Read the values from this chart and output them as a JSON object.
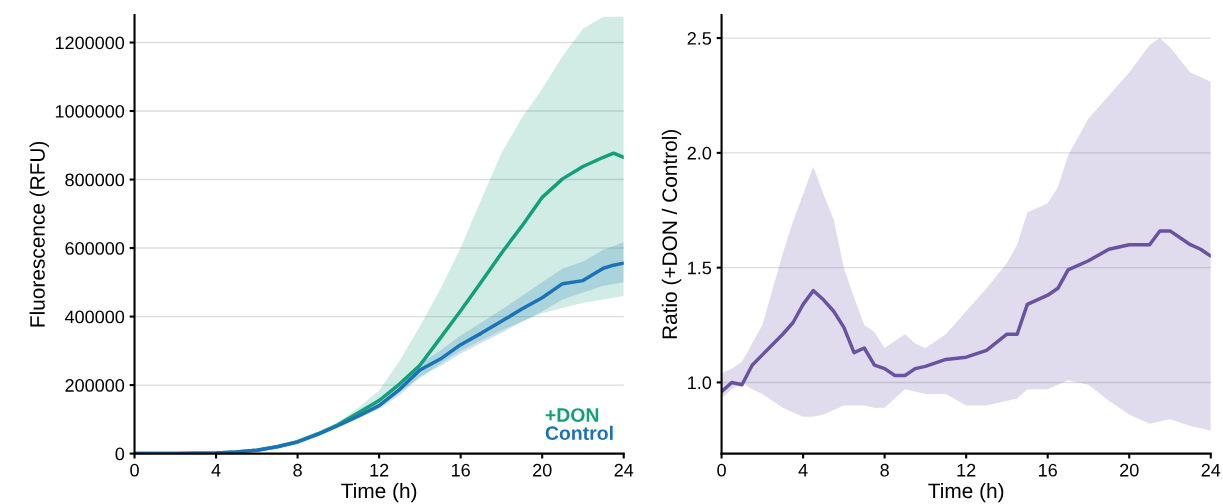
{
  "chart_data": [
    {
      "type": "line",
      "xlabel": "Time (h)",
      "ylabel": "Fluorescence (RFU)",
      "xlim": [
        0,
        24
      ],
      "xticks": [
        0,
        4,
        8,
        12,
        16,
        20,
        24
      ],
      "ylim": [
        0,
        1280000
      ],
      "yticks": [
        0,
        200000,
        400000,
        600000,
        800000,
        1000000,
        1200000
      ],
      "grid": "y",
      "legend": "bottom right",
      "x": [
        0,
        2,
        4,
        5,
        6,
        7,
        8,
        9,
        10,
        11,
        12,
        13,
        14,
        15,
        16,
        17,
        18,
        19,
        20,
        21,
        22,
        23,
        23.5,
        24
      ],
      "series": [
        {
          "name": "+DON",
          "color": "#12a07a",
          "values": [
            0,
            500,
            2000,
            5000,
            10000,
            20000,
            35000,
            58000,
            85000,
            120000,
            155000,
            203000,
            258000,
            337000,
            417000,
            500000,
            585000,
            664000,
            748000,
            802000,
            838000,
            865000,
            877000,
            865000
          ],
          "lower": [
            0,
            500,
            2000,
            5000,
            10000,
            19000,
            33000,
            55000,
            80000,
            110000,
            140000,
            180000,
            220000,
            262000,
            300000,
            330000,
            360000,
            385000,
            410000,
            425000,
            440000,
            450000,
            455000,
            460000
          ],
          "upper": [
            0,
            500,
            2000,
            5000,
            10000,
            21000,
            36000,
            60000,
            92000,
            135000,
            184000,
            270000,
            372000,
            480000,
            600000,
            740000,
            877000,
            980000,
            1065000,
            1160000,
            1240000,
            1275000,
            1275000,
            1275000
          ]
        },
        {
          "name": "Control",
          "color": "#1a72b8",
          "values": [
            0,
            500,
            2000,
            5000,
            10000,
            20000,
            34000,
            56000,
            82000,
            110000,
            140000,
            187000,
            244000,
            276000,
            318000,
            351000,
            386000,
            422000,
            455000,
            496000,
            505000,
            541000,
            550000,
            556000
          ],
          "lower": [
            0,
            500,
            2000,
            5000,
            10000,
            19000,
            32000,
            53000,
            78000,
            104000,
            130000,
            170000,
            225000,
            255000,
            292000,
            322000,
            352000,
            385000,
            415000,
            450000,
            470000,
            490000,
            495000,
            500000
          ],
          "upper": [
            0,
            500,
            2000,
            5000,
            10000,
            21000,
            36000,
            59000,
            86000,
            116000,
            150000,
            205000,
            262000,
            300000,
            345000,
            382000,
            420000,
            460000,
            500000,
            540000,
            560000,
            595000,
            605000,
            618000
          ]
        }
      ]
    },
    {
      "type": "line",
      "xlabel": "Time (h)",
      "ylabel": "Ratio (+DON / Control)",
      "xlim": [
        0,
        24
      ],
      "xticks": [
        0,
        4,
        8,
        12,
        16,
        20,
        24
      ],
      "ylim": [
        0.69,
        2.6
      ],
      "yticks": [
        {
          "value": 1.0,
          "label": "1.0"
        },
        1.5,
        {
          "value": 2.0,
          "label": "2.0"
        },
        2.5
      ],
      "grid": "y",
      "x": [
        0,
        0.5,
        1,
        1.5,
        2,
        3,
        3.5,
        4,
        4.5,
        5,
        5.5,
        6,
        6.5,
        7,
        7.5,
        8,
        8.5,
        9,
        9.5,
        10,
        11,
        12,
        13,
        14,
        14.5,
        15,
        16,
        16.5,
        17,
        18,
        19,
        20,
        20.5,
        21,
        21.5,
        22,
        23,
        23.5,
        24
      ],
      "series": [
        {
          "color": "#6a51a3",
          "values": [
            0.96,
            1.0,
            0.99,
            1.075,
            1.12,
            1.21,
            1.26,
            1.34,
            1.4,
            1.36,
            1.31,
            1.24,
            1.13,
            1.15,
            1.075,
            1.06,
            1.03,
            1.03,
            1.06,
            1.07,
            1.1,
            1.11,
            1.14,
            1.21,
            1.21,
            1.34,
            1.38,
            1.41,
            1.49,
            1.53,
            1.58,
            1.6,
            1.6,
            1.6,
            1.66,
            1.66,
            1.6,
            1.58,
            1.55
          ],
          "lower": [
            0.93,
            0.97,
            1.0,
            0.97,
            0.95,
            0.89,
            0.87,
            0.85,
            0.85,
            0.86,
            0.88,
            0.9,
            0.9,
            0.9,
            0.89,
            0.89,
            0.93,
            0.97,
            0.96,
            0.95,
            0.95,
            0.9,
            0.9,
            0.92,
            0.93,
            0.97,
            0.97,
            0.99,
            1.01,
            0.99,
            0.92,
            0.86,
            0.84,
            0.82,
            0.83,
            0.84,
            0.81,
            0.8,
            0.79
          ],
          "upper": [
            1.04,
            1.06,
            1.09,
            1.17,
            1.25,
            1.56,
            1.7,
            1.82,
            1.94,
            1.82,
            1.71,
            1.5,
            1.37,
            1.25,
            1.22,
            1.15,
            1.18,
            1.21,
            1.17,
            1.15,
            1.21,
            1.31,
            1.41,
            1.52,
            1.6,
            1.74,
            1.78,
            1.85,
            1.99,
            2.15,
            2.25,
            2.35,
            2.41,
            2.47,
            2.5,
            2.46,
            2.35,
            2.33,
            2.31
          ]
        }
      ]
    }
  ]
}
